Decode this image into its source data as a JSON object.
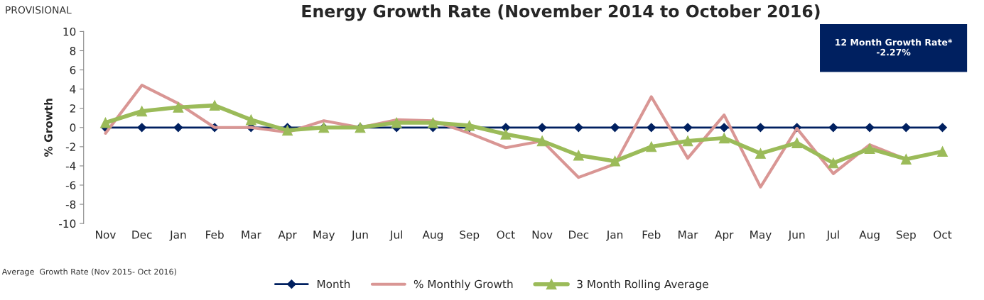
{
  "chart_data": {
    "type": "line",
    "title": "Energy Growth Rate (November 2014 to October 2016)",
    "ylabel": "% Growth",
    "categories": [
      "Nov",
      "Dec",
      "Jan",
      "Feb",
      "Mar",
      "Apr",
      "May",
      "Jun",
      "Jul",
      "Aug",
      "Sep",
      "Oct",
      "Nov",
      "Dec",
      "Jan",
      "Feb",
      "Mar",
      "Apr",
      "May",
      "Jun",
      "Jul",
      "Aug",
      "Sep",
      "Oct"
    ],
    "series": [
      {
        "name": "Month",
        "color": "#002060",
        "marker": "diamond",
        "values": [
          0,
          0,
          0,
          0,
          0,
          0,
          0,
          0,
          0,
          0,
          0,
          0,
          0,
          0,
          0,
          0,
          0,
          0,
          0,
          0,
          0,
          0,
          0,
          0
        ]
      },
      {
        "name": "% Monthly Growth",
        "color": "#d99694",
        "marker": "none",
        "values": [
          -0.6,
          4.4,
          2.5,
          0,
          0,
          -0.5,
          0.7,
          0,
          0.8,
          0.7,
          -0.6,
          -2.1,
          -1.4,
          -5.2,
          -3.8,
          3.2,
          -3.2,
          1.3,
          -6.2,
          -0.1,
          -4.8,
          -1.8,
          -3.3,
          null
        ]
      },
      {
        "name": "3 Month Rolling Average",
        "color": "#9bbb59",
        "marker": "triangle",
        "values": [
          0.5,
          1.7,
          2.1,
          2.3,
          0.8,
          -0.3,
          0,
          0,
          0.5,
          0.5,
          0.2,
          -0.7,
          -1.4,
          -2.9,
          -3.5,
          -2.0,
          -1.4,
          -1.1,
          -2.7,
          -1.6,
          -3.7,
          -2.2,
          -3.3,
          -2.5
        ]
      }
    ],
    "ylim": [
      -10,
      10
    ],
    "yticks": [
      -10,
      -8,
      -6,
      -4,
      -2,
      0,
      2,
      4,
      6,
      8,
      10
    ],
    "grid": false,
    "legend": "bottom",
    "annotations": [
      "PROVISIONAL",
      "12 Month Growth Rate*\n-2.27%",
      "Average  Growth Rate (Nov 2015- Oct 2016)"
    ]
  }
}
